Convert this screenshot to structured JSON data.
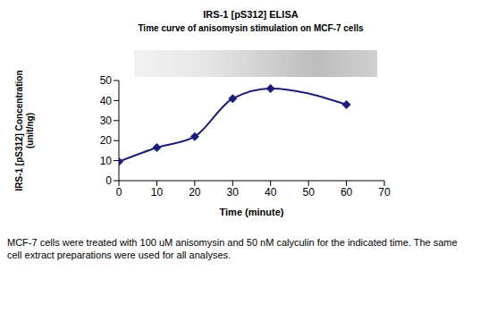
{
  "chart_data": {
    "type": "line",
    "title": "IRS-1 [pS312] ELISA",
    "subtitle": "Time curve of anisomysin stimulation on MCF-7 cells",
    "x_label": "Time (minute)",
    "y_label": "IRS-1 [pS312] Concentration (unit/ng)",
    "caption": "MCF-7 cells were treated with 100 uM anisomysin and 50 nM calyculin for the indicated time. The same cell extract preparations were used for all analyses.",
    "x": [
      0,
      10,
      20,
      30,
      40,
      60
    ],
    "values": [
      9.5,
      16.5,
      22,
      41,
      46,
      38
    ],
    "color": "#1c1c7c",
    "marker": "diamond",
    "line_style": "smooth",
    "xlim": [
      0,
      70
    ],
    "xticks": [
      0,
      10,
      20,
      30,
      40,
      50,
      60,
      70
    ],
    "ylim": [
      0,
      50
    ],
    "yticks": [
      0,
      10,
      20,
      30,
      40,
      50
    ],
    "grid": false
  }
}
